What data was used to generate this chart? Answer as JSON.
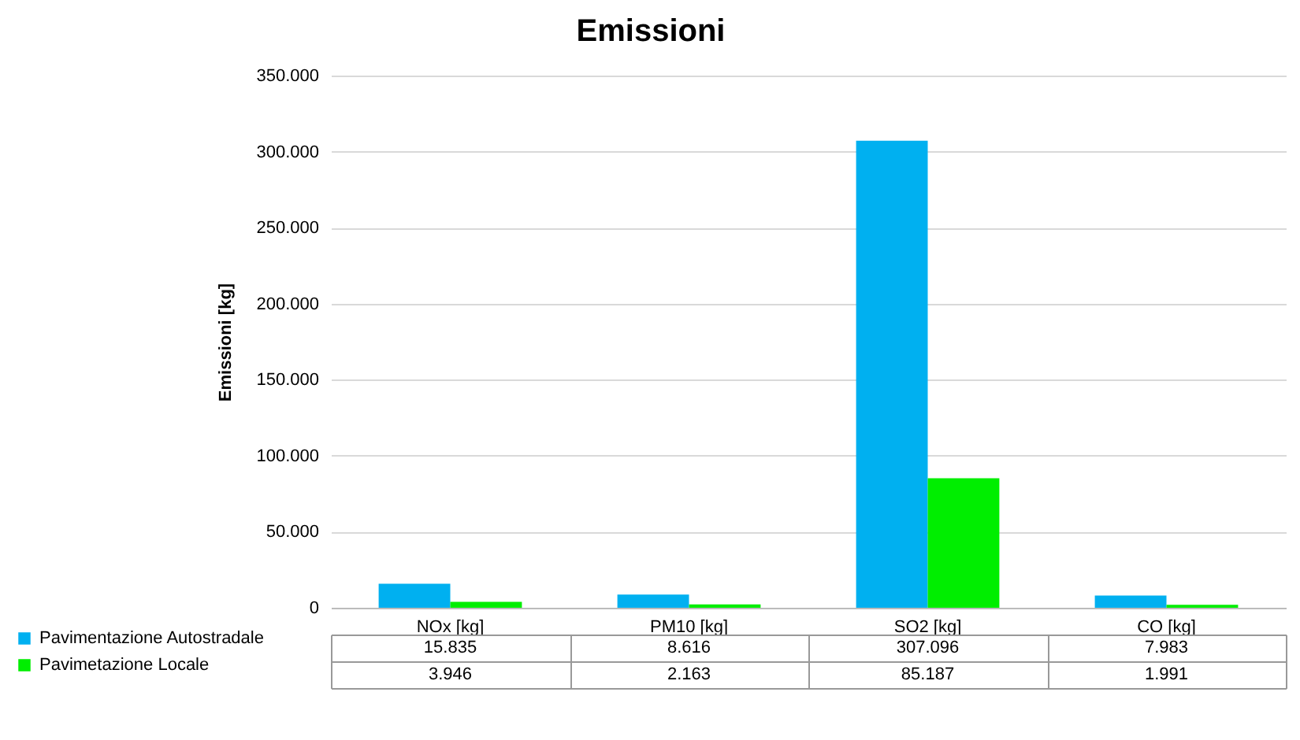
{
  "chart_data": {
    "type": "bar",
    "title": "Emissioni",
    "ylabel": "Emissioni [kg]",
    "categories": [
      "NOx [kg]",
      "PM10 [kg]",
      "SO2 [kg]",
      "CO [kg]"
    ],
    "series": [
      {
        "name": "Pavimentazione Autostradale",
        "color": "#00b0f0",
        "values": [
          15835,
          8616,
          307096,
          7983
        ],
        "value_labels": [
          "15.835",
          "8.616",
          "307.096",
          "7.983"
        ]
      },
      {
        "name": "Pavimetazione Locale",
        "color": "#00ee00",
        "values": [
          3946,
          2163,
          85187,
          1991
        ],
        "value_labels": [
          "3.946",
          "2.163",
          "85.187",
          "1.991"
        ]
      }
    ],
    "ylim": [
      0,
      350000
    ],
    "yticks": [
      {
        "value": 0,
        "label": "0"
      },
      {
        "value": 50000,
        "label": "50.000"
      },
      {
        "value": 100000,
        "label": "100.000"
      },
      {
        "value": 150000,
        "label": "150.000"
      },
      {
        "value": 200000,
        "label": "200.000"
      },
      {
        "value": 250000,
        "label": "250.000"
      },
      {
        "value": 300000,
        "label": "300.000"
      },
      {
        "value": 350000,
        "label": "350.000"
      }
    ],
    "grid": "y",
    "legend": "bottom left"
  }
}
